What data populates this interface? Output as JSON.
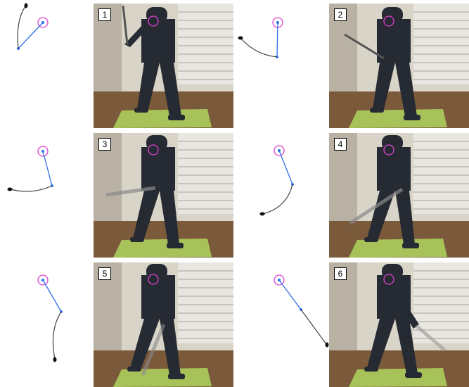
{
  "frames": [
    {
      "number": "1"
    },
    {
      "number": "2"
    },
    {
      "number": "3"
    },
    {
      "number": "4"
    },
    {
      "number": "5"
    },
    {
      "number": "6"
    }
  ],
  "colors": {
    "arm_line": "#2f6fe8",
    "club_line": "#444444",
    "pivot_circle": "#e040d0",
    "club_head": "#111111",
    "mat": "#a8c25a",
    "floor": "#7a5a3a",
    "wall": "#d9d4c8",
    "blinds": "#e8e6e0",
    "clothing": "#262a33"
  }
}
